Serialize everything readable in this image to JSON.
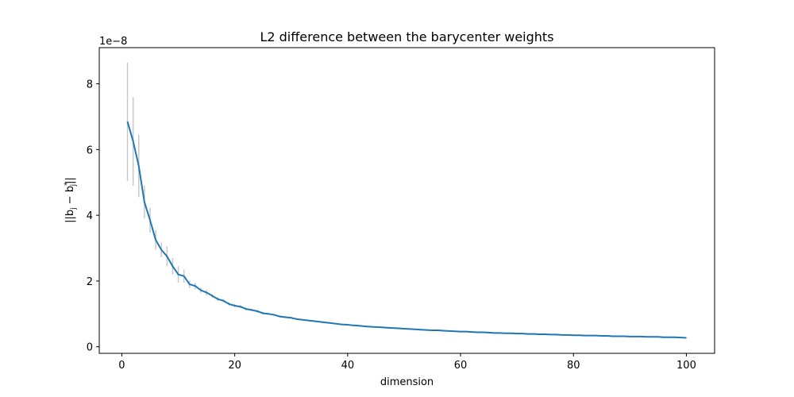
{
  "chart_data": {
    "type": "line",
    "title": "L2 difference between the barycenter weights",
    "xlabel": "dimension",
    "ylabel_prefix": "||b",
    "ylabel_sub": "j",
    "ylabel_mid": " − b",
    "ylabel_sup": "*",
    "ylabel_sub2": "j",
    "ylabel_suffix": "||",
    "y_offset_text": "1e−8",
    "y_scale_exponent": -8,
    "xlim": [
      -4,
      105
    ],
    "ylim": [
      -0.2,
      9.1
    ],
    "xticks": [
      0,
      20,
      40,
      60,
      80,
      100
    ],
    "yticks": [
      0,
      2,
      4,
      6,
      8
    ],
    "grid": false,
    "line_color": "#1f77b4",
    "errorbar_color": "#c8c8c8",
    "series": [
      {
        "x": [
          1,
          2,
          3,
          4,
          5,
          6,
          7,
          8,
          9,
          10,
          11,
          12,
          13,
          14,
          15,
          16,
          17,
          18,
          19,
          20,
          21,
          22,
          23,
          24,
          25,
          26,
          27,
          28,
          29,
          30,
          31,
          32,
          33,
          34,
          35,
          36,
          37,
          38,
          39,
          40,
          41,
          42,
          43,
          44,
          45,
          46,
          47,
          48,
          49,
          50,
          51,
          52,
          53,
          54,
          55,
          56,
          57,
          58,
          59,
          60,
          61,
          62,
          63,
          64,
          65,
          66,
          67,
          68,
          69,
          70,
          71,
          72,
          73,
          74,
          75,
          76,
          77,
          78,
          79,
          80,
          81,
          82,
          83,
          84,
          85,
          86,
          87,
          88,
          89,
          90,
          91,
          92,
          93,
          94,
          95,
          96,
          97,
          98,
          99,
          100
        ],
        "y": [
          6.85,
          6.25,
          5.5,
          4.4,
          3.85,
          3.25,
          2.95,
          2.75,
          2.45,
          2.2,
          2.15,
          1.9,
          1.85,
          1.72,
          1.65,
          1.55,
          1.45,
          1.4,
          1.3,
          1.25,
          1.22,
          1.15,
          1.12,
          1.08,
          1.02,
          1.0,
          0.97,
          0.92,
          0.9,
          0.88,
          0.84,
          0.82,
          0.8,
          0.78,
          0.76,
          0.74,
          0.72,
          0.7,
          0.68,
          0.67,
          0.65,
          0.64,
          0.62,
          0.61,
          0.6,
          0.59,
          0.58,
          0.57,
          0.56,
          0.55,
          0.54,
          0.53,
          0.52,
          0.51,
          0.5,
          0.5,
          0.49,
          0.48,
          0.47,
          0.46,
          0.46,
          0.45,
          0.44,
          0.44,
          0.43,
          0.42,
          0.42,
          0.41,
          0.41,
          0.4,
          0.4,
          0.39,
          0.39,
          0.38,
          0.38,
          0.37,
          0.37,
          0.36,
          0.36,
          0.35,
          0.35,
          0.34,
          0.34,
          0.34,
          0.33,
          0.33,
          0.32,
          0.32,
          0.32,
          0.31,
          0.31,
          0.31,
          0.3,
          0.3,
          0.3,
          0.29,
          0.29,
          0.29,
          0.28,
          0.27
        ],
        "error": [
          1.8,
          1.35,
          0.95,
          0.5,
          0.38,
          0.3,
          0.22,
          0.3,
          0.25,
          0.25,
          0.2,
          0.12,
          0.1,
          0.08,
          0.08,
          0.06,
          0.06,
          0.05,
          0.05,
          0.05,
          0.05,
          0.04,
          0.04,
          0.04,
          0.04,
          0.03,
          0.03,
          0.03,
          0.03,
          0.03,
          0.03,
          0.02,
          0.02,
          0.02,
          0.02,
          0.02,
          0.02,
          0.02,
          0.02,
          0.02,
          0.02,
          0.02,
          0.02,
          0.02,
          0.02,
          0.02,
          0.02,
          0.02,
          0.02,
          0.02,
          0.01,
          0.01,
          0.01,
          0.01,
          0.01,
          0.01,
          0.01,
          0.01,
          0.01,
          0.01,
          0.01,
          0.01,
          0.01,
          0.01,
          0.01,
          0.01,
          0.01,
          0.01,
          0.01,
          0.01,
          0.01,
          0.01,
          0.01,
          0.01,
          0.01,
          0.01,
          0.01,
          0.01,
          0.01,
          0.01,
          0.01,
          0.01,
          0.01,
          0.01,
          0.01,
          0.01,
          0.01,
          0.01,
          0.01,
          0.01,
          0.01,
          0.01,
          0.01,
          0.01,
          0.01,
          0.01,
          0.01,
          0.01,
          0.01,
          0.01
        ]
      }
    ]
  }
}
